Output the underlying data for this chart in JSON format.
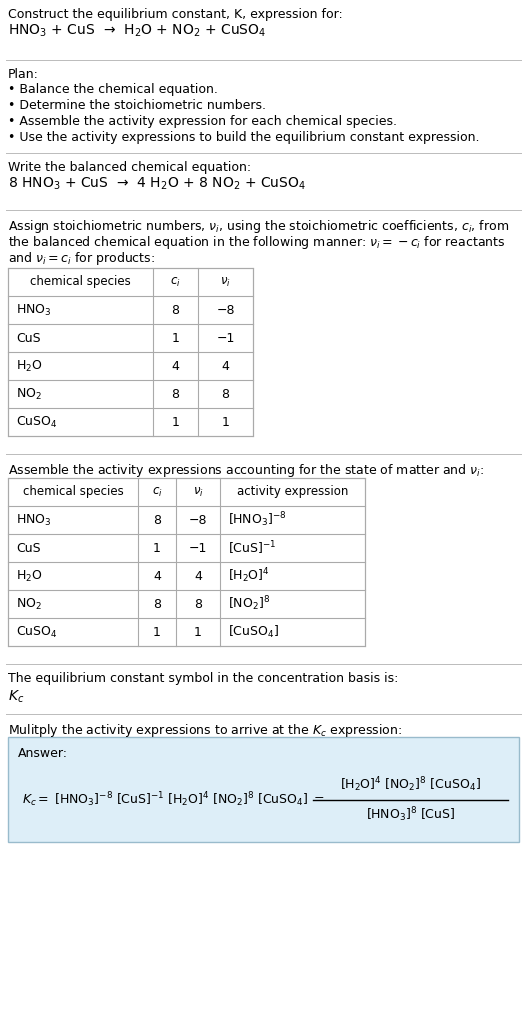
{
  "title_line1": "Construct the equilibrium constant, K, expression for:",
  "title_line2": "HNO$_3$ + CuS  →  H$_2$O + NO$_2$ + CuSO$_4$",
  "plan_header": "Plan:",
  "plan_items": [
    "• Balance the chemical equation.",
    "• Determine the stoichiometric numbers.",
    "• Assemble the activity expression for each chemical species.",
    "• Use the activity expressions to build the equilibrium constant expression."
  ],
  "balanced_header": "Write the balanced chemical equation:",
  "balanced_eq": "8 HNO$_3$ + CuS  →  4 H$_2$O + 8 NO$_2$ + CuSO$_4$",
  "stoich_intro": "Assign stoichiometric numbers, $\\nu_i$, using the stoichiometric coefficients, $c_i$, from\nthe balanced chemical equation in the following manner: $\\nu_i = -c_i$ for reactants\nand $\\nu_i = c_i$ for products:",
  "table1_headers": [
    "chemical species",
    "$c_i$",
    "$\\nu_i$"
  ],
  "table1_rows": [
    [
      "HNO$_3$",
      "8",
      "−8"
    ],
    [
      "CuS",
      "1",
      "−1"
    ],
    [
      "H$_2$O",
      "4",
      "4"
    ],
    [
      "NO$_2$",
      "8",
      "8"
    ],
    [
      "CuSO$_4$",
      "1",
      "1"
    ]
  ],
  "assemble_header": "Assemble the activity expressions accounting for the state of matter and $\\nu_i$:",
  "table2_headers": [
    "chemical species",
    "$c_i$",
    "$\\nu_i$",
    "activity expression"
  ],
  "table2_rows": [
    [
      "HNO$_3$",
      "8",
      "−8",
      "[HNO$_3$]$^{-8}$"
    ],
    [
      "CuS",
      "1",
      "−1",
      "[CuS]$^{-1}$"
    ],
    [
      "H$_2$O",
      "4",
      "4",
      "[H$_2$O]$^4$"
    ],
    [
      "NO$_2$",
      "8",
      "8",
      "[NO$_2$]$^8$"
    ],
    [
      "CuSO$_4$",
      "1",
      "1",
      "[CuSO$_4$]"
    ]
  ],
  "kc_header": "The equilibrium constant symbol in the concentration basis is:",
  "kc_symbol": "$K_c$",
  "multiply_header": "Mulitply the activity expressions to arrive at the $K_c$ expression:",
  "answer_label": "Answer:",
  "answer_kc_lhs": "$K_c =$ [HNO$_3$]$^{-8}$ [CuS]$^{-1}$ [H$_2$O]$^4$ [NO$_2$]$^8$ [CuSO$_4$] $=$",
  "answer_frac_num": "[H$_2$O]$^4$ [NO$_2$]$^8$ [CuSO$_4$]",
  "answer_frac_den": "[HNO$_3$]$^8$ [CuS]",
  "bg_color": "#ffffff",
  "table_border_color": "#aaaaaa",
  "answer_box_bg": "#ddeef8",
  "answer_box_border": "#99bbcc",
  "text_color": "#000000",
  "sep_line_color": "#bbbbbb",
  "font_size": 10.0,
  "small_font": 9.0
}
